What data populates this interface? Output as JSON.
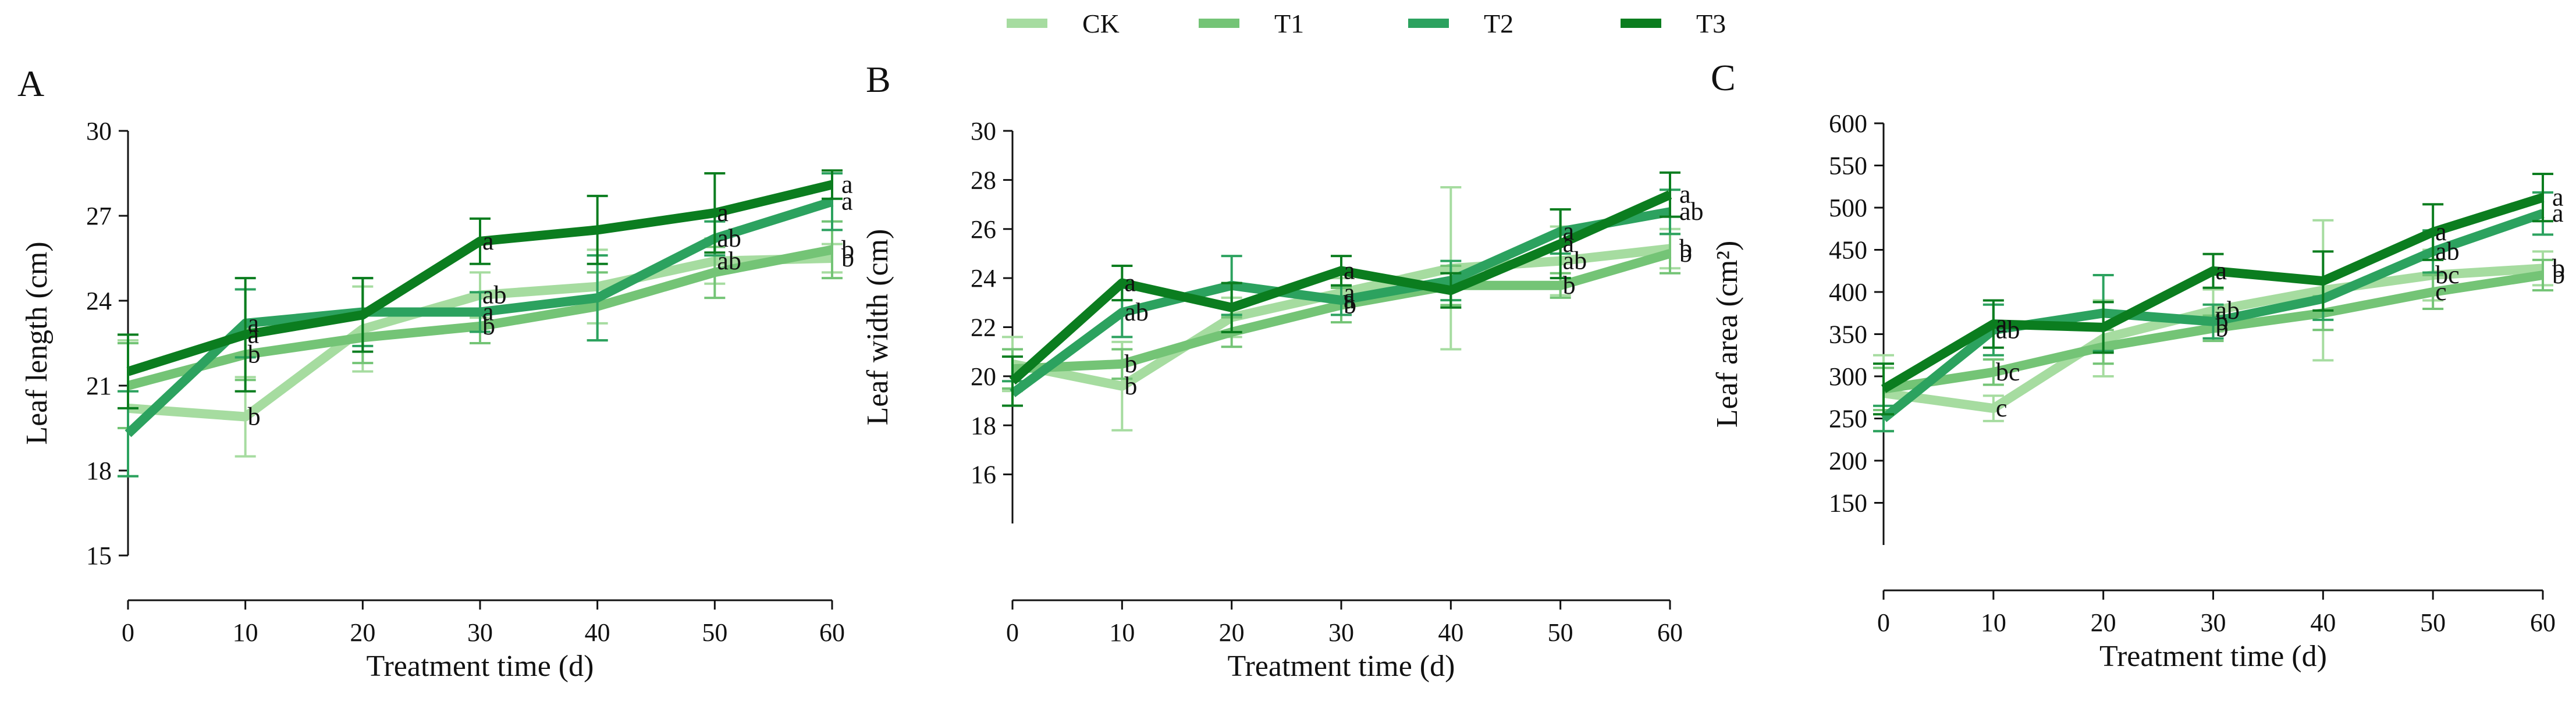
{
  "legend": {
    "items": [
      {
        "name": "CK",
        "color": "#a6dca0"
      },
      {
        "name": "T1",
        "color": "#74c476"
      },
      {
        "name": "T2",
        "color": "#2ca25f"
      },
      {
        "name": "T3",
        "color": "#0b7d1f"
      }
    ]
  },
  "chart_data": [
    {
      "type": "line",
      "panel_label": "A",
      "xlabel": "Treatment time (d)",
      "ylabel": "Leaf length (cm)",
      "x": [
        0,
        10,
        20,
        30,
        40,
        50,
        60
      ],
      "xticks": [
        0,
        10,
        20,
        30,
        40,
        50,
        60
      ],
      "xlim": [
        0,
        60
      ],
      "ylim": [
        15,
        30
      ],
      "yticks": [
        15,
        18,
        21,
        24,
        27,
        30
      ],
      "series": [
        {
          "name": "CK",
          "values": [
            20.2,
            19.9,
            23.0,
            24.2,
            24.5,
            25.4,
            25.5
          ],
          "errors": [
            2.4,
            1.4,
            1.5,
            0.8,
            1.3,
            0.8,
            0.5
          ],
          "letters": [
            "",
            "b",
            "",
            "ab",
            "",
            "ab",
            "b"
          ]
        },
        {
          "name": "T1",
          "values": [
            21.0,
            22.1,
            22.7,
            23.1,
            23.8,
            25.0,
            25.8
          ],
          "errors": [
            1.5,
            0.9,
            0.9,
            0.6,
            1.2,
            0.9,
            1.0
          ],
          "letters": [
            "",
            "b",
            "",
            "b",
            "",
            "",
            "b"
          ]
        },
        {
          "name": "T2",
          "values": [
            19.3,
            23.2,
            23.6,
            23.6,
            24.1,
            26.2,
            27.5
          ],
          "errors": [
            1.5,
            1.2,
            1.2,
            0.7,
            1.5,
            0.6,
            1.0
          ],
          "letters": [
            "",
            "a",
            "",
            "a",
            "",
            "ab",
            "a"
          ]
        },
        {
          "name": "T3",
          "values": [
            21.5,
            22.8,
            23.5,
            26.1,
            26.5,
            27.1,
            28.1
          ],
          "errors": [
            1.3,
            2.0,
            1.3,
            0.8,
            1.2,
            1.4,
            0.5
          ],
          "letters": [
            "",
            "a",
            "",
            "a",
            "",
            "a",
            "a"
          ]
        }
      ]
    },
    {
      "type": "line",
      "panel_label": "B",
      "xlabel": "Treatment time (d)",
      "ylabel": "Leaf width (cm)",
      "x": [
        0,
        10,
        20,
        30,
        40,
        50,
        60
      ],
      "xticks": [
        0,
        10,
        20,
        30,
        40,
        50,
        60
      ],
      "xlim": [
        0,
        60
      ],
      "ylim": [
        14,
        30
      ],
      "yticks": [
        16,
        18,
        20,
        22,
        24,
        26,
        28,
        30
      ],
      "series": [
        {
          "name": "CK",
          "values": [
            20.5,
            19.6,
            22.4,
            23.4,
            24.4,
            24.7,
            25.2
          ],
          "errors": [
            1.1,
            1.8,
            0.8,
            0.6,
            3.3,
            1.4,
            0.8
          ],
          "letters": [
            "",
            "b",
            "",
            "a",
            "",
            "ab",
            "b"
          ]
        },
        {
          "name": "T1",
          "values": [
            20.3,
            20.5,
            21.8,
            22.9,
            23.7,
            23.7,
            25.0
          ],
          "errors": [
            0.8,
            0.6,
            0.6,
            0.7,
            0.8,
            0.5,
            0.8
          ],
          "letters": [
            "",
            "b",
            "",
            "b",
            "",
            "b",
            "b"
          ]
        },
        {
          "name": "T2",
          "values": [
            19.3,
            22.6,
            23.7,
            23.1,
            23.9,
            25.9,
            26.7
          ],
          "errors": [
            0.5,
            1.0,
            1.2,
            0.6,
            0.8,
            0.9,
            0.9
          ],
          "letters": [
            "",
            "ab",
            "",
            "a",
            "",
            "a",
            "ab"
          ]
        },
        {
          "name": "T3",
          "values": [
            19.8,
            23.8,
            22.8,
            24.3,
            23.5,
            25.4,
            27.4
          ],
          "errors": [
            1.0,
            0.7,
            1.0,
            0.6,
            0.7,
            1.4,
            0.9
          ],
          "letters": [
            "",
            "a",
            "",
            "a",
            "",
            "a",
            "a"
          ]
        }
      ]
    },
    {
      "type": "line",
      "panel_label": "C",
      "xlabel": "Treatment time (d)",
      "ylabel": "Leaf area (cm²)",
      "x": [
        0,
        10,
        20,
        30,
        40,
        50,
        60
      ],
      "xticks": [
        0,
        10,
        20,
        30,
        40,
        50,
        60
      ],
      "xlim": [
        0,
        60
      ],
      "ylim": [
        100,
        600
      ],
      "yticks": [
        150,
        200,
        250,
        300,
        350,
        400,
        450,
        500,
        550,
        600
      ],
      "series": [
        {
          "name": "CK",
          "values": [
            280,
            262,
            345,
            378,
            402,
            420,
            428
          ],
          "errors": [
            45,
            15,
            45,
            25,
            83,
            30,
            20
          ],
          "letters": [
            "",
            "c",
            "",
            "ab",
            "",
            "bc",
            "b"
          ]
        },
        {
          "name": "T1",
          "values": [
            285,
            305,
            335,
            357,
            375,
            400,
            420
          ],
          "errors": [
            25,
            15,
            20,
            15,
            20,
            20,
            18
          ],
          "letters": [
            "",
            "bc",
            "",
            "b",
            "",
            "c",
            "b"
          ]
        },
        {
          "name": "T2",
          "values": [
            250,
            355,
            375,
            365,
            392,
            448,
            493
          ],
          "errors": [
            15,
            30,
            45,
            20,
            25,
            25,
            25
          ],
          "letters": [
            "",
            "ab",
            "",
            "b",
            "",
            "ab",
            "a"
          ]
        },
        {
          "name": "T3",
          "values": [
            285,
            362,
            358,
            425,
            413,
            471,
            512
          ],
          "errors": [
            30,
            28,
            30,
            20,
            35,
            33,
            28
          ],
          "letters": [
            "",
            "a",
            "",
            "a",
            "",
            "a",
            "a"
          ]
        }
      ]
    }
  ]
}
